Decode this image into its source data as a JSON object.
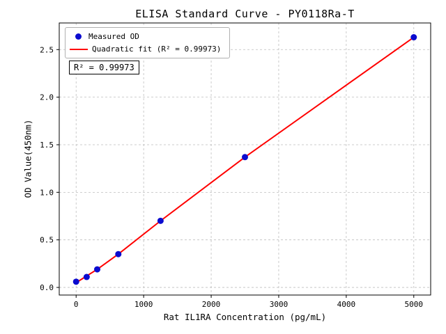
{
  "chart_data": {
    "type": "scatter",
    "title": "ELISA Standard Curve - PY0118Ra-T",
    "xlabel": "Rat IL1RA Concentration (pg/mL)",
    "ylabel": "OD Value(450nm)",
    "xlim": [
      -250,
      5250
    ],
    "ylim": [
      -0.08,
      2.78
    ],
    "xticks": [
      0,
      1000,
      2000,
      3000,
      4000,
      5000
    ],
    "yticks": [
      0.0,
      0.5,
      1.0,
      1.5,
      2.0,
      2.5
    ],
    "grid": true,
    "grid_style": "dashed",
    "legend_position": "upper-left",
    "annotation": "R² = 0.99973",
    "series": [
      {
        "name": "Measured OD",
        "type": "scatter",
        "color": "#0b0bcf",
        "x": [
          0,
          156.25,
          312.5,
          625,
          1250,
          2500,
          5000
        ],
        "y": [
          0.06,
          0.11,
          0.19,
          0.35,
          0.7,
          1.37,
          2.63
        ]
      },
      {
        "name": "Quadratic fit (R² = 0.99973)",
        "type": "line",
        "color": "#ff0000",
        "x": [
          0,
          156.25,
          312.5,
          625,
          1250,
          2500,
          5000
        ],
        "y": [
          0.05,
          0.12,
          0.19,
          0.35,
          0.7,
          1.37,
          2.63
        ]
      }
    ]
  }
}
